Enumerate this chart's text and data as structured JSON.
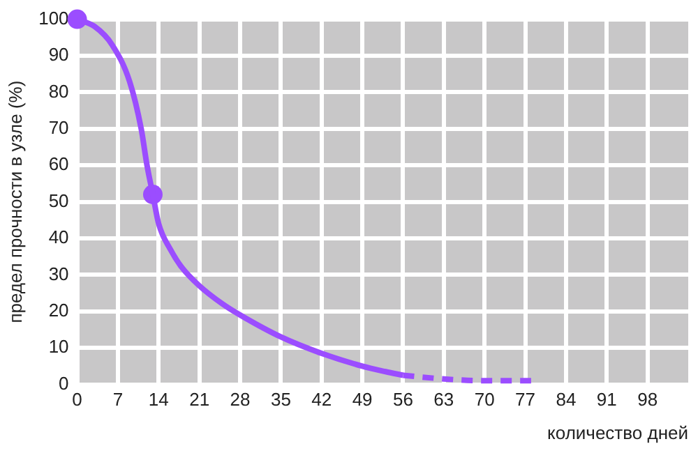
{
  "chart_data": {
    "type": "line",
    "xlabel": "количество дней",
    "ylabel": "предел прочности в узле (%)",
    "xlim": [
      0,
      105
    ],
    "xticks": [
      0,
      7,
      14,
      21,
      28,
      35,
      42,
      49,
      56,
      63,
      70,
      77,
      84,
      91,
      98
    ],
    "ylim": [
      0,
      100
    ],
    "yticks": [
      0,
      10,
      20,
      30,
      40,
      50,
      60,
      70,
      80,
      90,
      100
    ],
    "grid": true,
    "legend": false,
    "series": [
      {
        "line_style": "solid",
        "color": "#9b4dff",
        "x": [
          0,
          3,
          6,
          9,
          11,
          12,
          13,
          14,
          16,
          18,
          21,
          25,
          28,
          35,
          42,
          49,
          53,
          56
        ],
        "values": [
          100,
          98,
          93,
          83,
          70,
          60,
          52,
          44,
          37,
          32,
          27,
          22,
          19,
          13,
          8.5,
          5,
          3.5,
          2.5
        ]
      },
      {
        "line_style": "dashed",
        "color": "#9b4dff",
        "x": [
          56,
          63,
          70,
          77,
          78
        ],
        "values": [
          2.5,
          1.5,
          1,
          1,
          1
        ]
      },
      {
        "type": "scatter",
        "marker": "circle",
        "color": "#9b4dff",
        "x": [
          0,
          13
        ],
        "values": [
          100,
          52
        ]
      }
    ]
  }
}
